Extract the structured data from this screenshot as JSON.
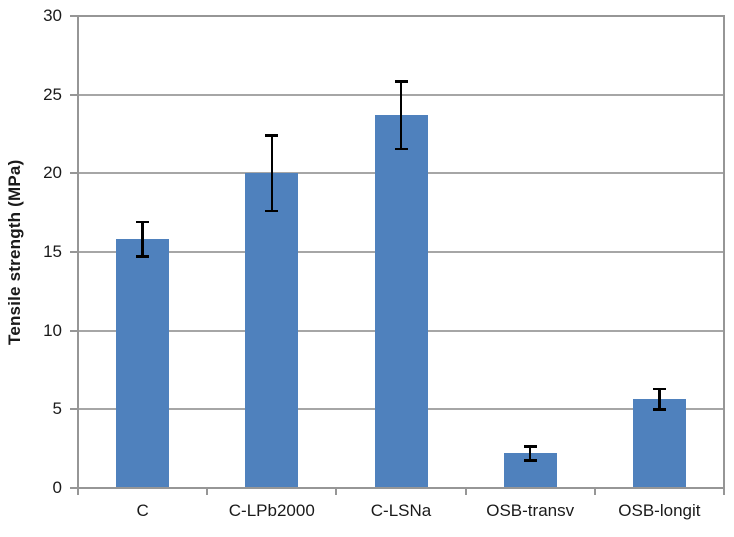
{
  "chart_data": {
    "type": "bar",
    "title": "",
    "xlabel": "",
    "ylabel": "Tensile strength (MPa)",
    "categories": [
      "C",
      "C-LPb2000",
      "C-LSNa",
      "OSB-transv",
      "OSB-longit"
    ],
    "values": [
      15.8,
      20.0,
      23.7,
      2.2,
      5.65
    ],
    "errors": [
      1.1,
      2.4,
      2.15,
      0.45,
      0.65
    ],
    "ylim": [
      0,
      30
    ],
    "yticks": [
      0,
      5,
      10,
      15,
      20,
      25,
      30
    ],
    "grid": true,
    "legend": false,
    "bar_color": "#4f81bd",
    "gridline_color": "#a6a6a6",
    "axis_color": "#969696",
    "error_bar_color": "#000000",
    "background_color": "#ffffff"
  }
}
